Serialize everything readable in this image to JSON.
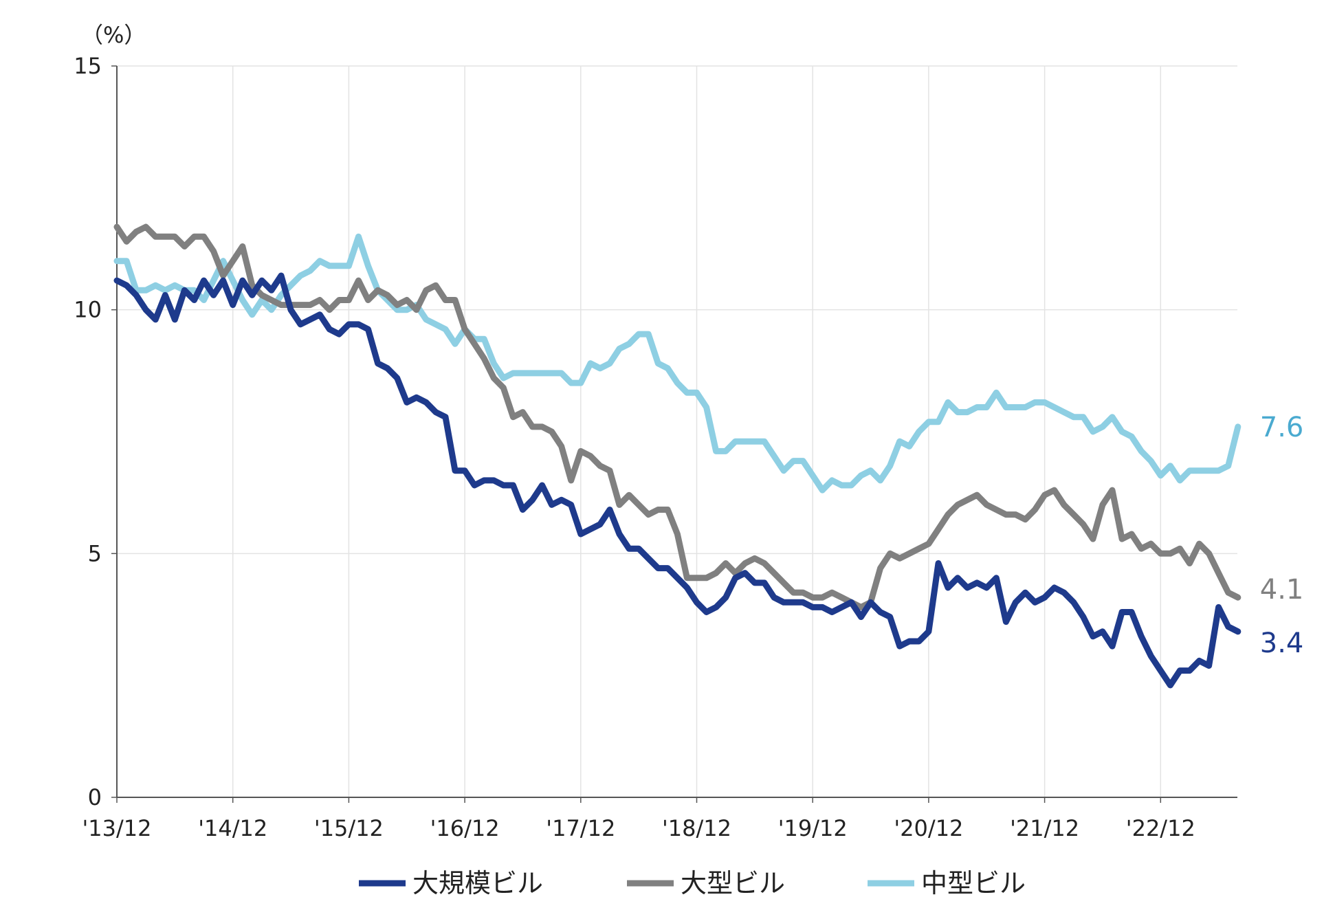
{
  "chart_data": {
    "type": "line",
    "unit_label": "（%）",
    "ylim": [
      0,
      15
    ],
    "y_ticks": [
      0,
      5,
      10,
      15
    ],
    "y_tick_labels": [
      "0",
      "5",
      "10",
      "15"
    ],
    "x_range": [
      "2013-12",
      "2023-09"
    ],
    "x_tick_labels": [
      "'13/12",
      "'14/12",
      "'15/12",
      "'16/12",
      "'17/12",
      "'18/12",
      "'19/12",
      "'20/12",
      "'21/12",
      "'22/12"
    ],
    "grid": true,
    "legend_position": "bottom",
    "series": [
      {
        "name": "大規模ビル",
        "color": "#1e3a8c",
        "end_label": "3.4",
        "values": [
          10.6,
          10.5,
          10.3,
          10.0,
          9.8,
          10.3,
          9.8,
          10.4,
          10.2,
          10.6,
          10.3,
          10.6,
          10.1,
          10.6,
          10.3,
          10.6,
          10.4,
          10.7,
          10.0,
          9.7,
          9.8,
          9.9,
          9.6,
          9.5,
          9.7,
          9.7,
          9.6,
          8.9,
          8.8,
          8.6,
          8.1,
          8.2,
          8.1,
          7.9,
          7.8,
          6.7,
          6.7,
          6.4,
          6.5,
          6.5,
          6.4,
          6.4,
          5.9,
          6.1,
          6.4,
          6.0,
          6.1,
          6.0,
          5.4,
          5.5,
          5.6,
          5.9,
          5.4,
          5.1,
          5.1,
          4.9,
          4.7,
          4.7,
          4.5,
          4.3,
          4.0,
          3.8,
          3.9,
          4.1,
          4.5,
          4.6,
          4.4,
          4.4,
          4.1,
          4.0,
          4.0,
          4.0,
          3.9,
          3.9,
          3.8,
          3.9,
          4.0,
          3.7,
          4.0,
          3.8,
          3.7,
          3.1,
          3.2,
          3.2,
          3.4,
          4.8,
          4.3,
          4.5,
          4.3,
          4.4,
          4.3,
          4.5,
          3.6,
          4.0,
          4.2,
          4.0,
          4.1,
          4.3,
          4.2,
          4.0,
          3.7,
          3.3,
          3.4,
          3.1,
          3.8,
          3.8,
          3.3,
          2.9,
          2.6,
          2.3,
          2.6,
          2.6,
          2.8,
          2.7,
          3.9,
          3.5,
          3.4
        ]
      },
      {
        "name": "大型ビル",
        "color": "#808080",
        "end_label": "4.1",
        "values": [
          11.7,
          11.4,
          11.6,
          11.7,
          11.5,
          11.5,
          11.5,
          11.3,
          11.5,
          11.5,
          11.2,
          10.7,
          11.0,
          11.3,
          10.5,
          10.3,
          10.2,
          10.1,
          10.1,
          10.1,
          10.1,
          10.2,
          10.0,
          10.2,
          10.2,
          10.6,
          10.2,
          10.4,
          10.3,
          10.1,
          10.2,
          10.0,
          10.4,
          10.5,
          10.2,
          10.2,
          9.6,
          9.3,
          9.0,
          8.6,
          8.4,
          7.8,
          7.9,
          7.6,
          7.6,
          7.5,
          7.2,
          6.5,
          7.1,
          7.0,
          6.8,
          6.7,
          6.0,
          6.2,
          6.0,
          5.8,
          5.9,
          5.9,
          5.4,
          4.5,
          4.5,
          4.5,
          4.6,
          4.8,
          4.6,
          4.8,
          4.9,
          4.8,
          4.6,
          4.4,
          4.2,
          4.2,
          4.1,
          4.1,
          4.2,
          4.1,
          4.0,
          3.9,
          4.0,
          4.7,
          5.0,
          4.9,
          5.0,
          5.1,
          5.2,
          5.5,
          5.8,
          6.0,
          6.1,
          6.2,
          6.0,
          5.9,
          5.8,
          5.8,
          5.7,
          5.9,
          6.2,
          6.3,
          6.0,
          5.8,
          5.6,
          5.3,
          6.0,
          6.3,
          5.3,
          5.4,
          5.1,
          5.2,
          5.0,
          5.0,
          5.1,
          4.8,
          5.2,
          5.0,
          4.6,
          4.2,
          4.1
        ]
      },
      {
        "name": "中型ビル",
        "color": "#8ecfe3",
        "end_label": "7.6",
        "values": [
          11.0,
          11.0,
          10.4,
          10.4,
          10.5,
          10.4,
          10.5,
          10.4,
          10.4,
          10.2,
          10.6,
          11.0,
          10.6,
          10.2,
          9.9,
          10.2,
          10.0,
          10.3,
          10.5,
          10.7,
          10.8,
          11.0,
          10.9,
          10.9,
          10.9,
          11.5,
          10.9,
          10.4,
          10.2,
          10.0,
          10.0,
          10.1,
          9.8,
          9.7,
          9.6,
          9.3,
          9.6,
          9.4,
          9.4,
          8.9,
          8.6,
          8.7,
          8.7,
          8.7,
          8.7,
          8.7,
          8.7,
          8.5,
          8.5,
          8.9,
          8.8,
          8.9,
          9.2,
          9.3,
          9.5,
          9.5,
          8.9,
          8.8,
          8.5,
          8.3,
          8.3,
          8.0,
          7.1,
          7.1,
          7.3,
          7.3,
          7.3,
          7.3,
          7.0,
          6.7,
          6.9,
          6.9,
          6.6,
          6.3,
          6.5,
          6.4,
          6.4,
          6.6,
          6.7,
          6.5,
          6.8,
          7.3,
          7.2,
          7.5,
          7.7,
          7.7,
          8.1,
          7.9,
          7.9,
          8.0,
          8.0,
          8.3,
          8.0,
          8.0,
          8.0,
          8.1,
          8.1,
          8.0,
          7.9,
          7.8,
          7.8,
          7.5,
          7.6,
          7.8,
          7.5,
          7.4,
          7.1,
          6.9,
          6.6,
          6.8,
          6.5,
          6.7,
          6.7,
          6.7,
          6.7,
          6.8,
          7.6
        ]
      }
    ]
  }
}
